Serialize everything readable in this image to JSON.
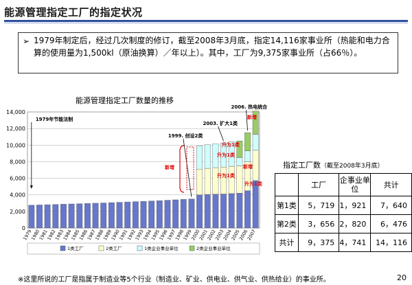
{
  "page": {
    "title": "能源管理指定工厂的指定状况",
    "page_number": "20",
    "footnote": "※这里所说的工厂是指属于制造业等5个行业（制造业、矿业、供电业、供气业、供热给业）的事业所。"
  },
  "summary": {
    "bullet": "➢",
    "text": "1979年制定后，经过几次制度的修订，截至2008年3月底，指定14,116家事业所（热能和电力合算的使用量为1,500kl（原油换算）／年以上）。其中，工厂为9,375家事业所（占66％）。"
  },
  "chart_data": {
    "type": "bar",
    "title": "能源管理指定工厂数量的推移",
    "categories": [
      "1979",
      "1980",
      "1981",
      "1982",
      "1983",
      "1984",
      "1985",
      "1986",
      "1987",
      "1988",
      "1989",
      "1990",
      "1991",
      "1992",
      "1993",
      "1994",
      "1995",
      "1996",
      "1997",
      "1998",
      "1999",
      "2000",
      "2001",
      "2002",
      "2003",
      "2004",
      "2005",
      "2006",
      "2007"
    ],
    "ylim": [
      0,
      14000
    ],
    "yticks": [
      "0",
      "2,000",
      "4,000",
      "6,000",
      "8,000",
      "10,000",
      "12,000",
      "14,000"
    ],
    "series": [
      {
        "name": "1类工厂",
        "color": "#6677cc",
        "values": [
          2750,
          2780,
          2810,
          2840,
          2870,
          2900,
          2930,
          2960,
          2990,
          3020,
          3060,
          3100,
          3140,
          3180,
          3220,
          3260,
          3300,
          3350,
          3400,
          3450,
          3500,
          4000,
          4050,
          4080,
          4100,
          4150,
          4200,
          4500,
          5719
        ]
      },
      {
        "name": "2类工厂",
        "color": "#ffffcc",
        "values": [
          0,
          0,
          0,
          0,
          0,
          0,
          0,
          0,
          0,
          0,
          0,
          0,
          0,
          0,
          0,
          0,
          0,
          0,
          0,
          0,
          0,
          3100,
          3150,
          3200,
          3250,
          3300,
          3300,
          3500,
          3656
        ]
      },
      {
        "name": "1类企业事业单位",
        "color": "#ccffff",
        "values": [
          0,
          0,
          0,
          0,
          0,
          0,
          0,
          0,
          0,
          0,
          0,
          0,
          0,
          0,
          0,
          0,
          0,
          0,
          0,
          0,
          0,
          2800,
          2850,
          2870,
          2900,
          2950,
          1000,
          1300,
          1921
        ]
      },
      {
        "name": "2类企业事业单位",
        "color": "#99cc66",
        "values": [
          0,
          0,
          0,
          0,
          0,
          0,
          0,
          0,
          0,
          0,
          0,
          0,
          0,
          0,
          0,
          0,
          0,
          0,
          0,
          0,
          0,
          0,
          0,
          0,
          0,
          0,
          2000,
          2200,
          2820
        ]
      }
    ],
    "legend": [
      "1类工厂",
      "2类工厂",
      "1类企业事业单位",
      "2类企业事业单位"
    ],
    "annotations": [
      {
        "label": "1979年节能法制",
        "category": "1979"
      },
      {
        "label": "1999. 创设2类",
        "category": "1999"
      },
      {
        "label": "2003. 扩大1类",
        "category": "2003"
      },
      {
        "label": "2006. 热电统合",
        "category": "2006"
      }
    ],
    "red_labels": [
      "新增",
      "新增",
      "升为1类",
      "升为1类",
      "升为1类",
      "升为1类",
      "新增"
    ]
  },
  "table": {
    "title": "指定工厂数",
    "subtitle": "（截至2008年3月底）",
    "headers": [
      "",
      "工厂",
      "企事业单位",
      "共计"
    ],
    "rows": [
      [
        "第1类",
        "5，719",
        "1，921",
        "7，640"
      ],
      [
        "第2类",
        "3，656",
        "2，820",
        "6，476"
      ],
      [
        "共计",
        "9，375",
        "4，741",
        "14，116"
      ]
    ]
  }
}
